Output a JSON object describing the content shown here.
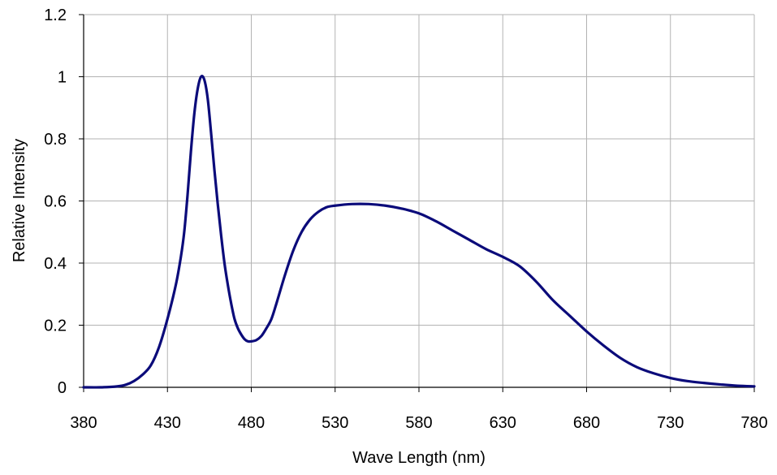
{
  "chart_data": {
    "type": "line",
    "title": "",
    "xlabel": "Wave Length (nm)",
    "ylabel": "Relative Intensity",
    "xlim": [
      380,
      780
    ],
    "ylim": [
      0,
      1.2
    ],
    "xticks": [
      380,
      430,
      480,
      530,
      580,
      630,
      680,
      730,
      780
    ],
    "yticks": [
      0,
      0.2,
      0.4,
      0.6,
      0.8,
      1,
      1.2
    ],
    "ytick_labels": [
      "0",
      "0.2",
      "0.4",
      "0.6",
      "0.8",
      "1",
      "1.2"
    ],
    "grid": true,
    "legend": "none",
    "colors": {
      "line": "#0b0b7a",
      "grid": "#b3b3b3",
      "axis": "#000000"
    },
    "series": [
      {
        "x": [
          380,
          390,
          400,
          405,
          410,
          415,
          420,
          425,
          430,
          435,
          438,
          440,
          442,
          444,
          446,
          448,
          450,
          452,
          454,
          456,
          458,
          460,
          462,
          464,
          466,
          468,
          470,
          472,
          474,
          476,
          478,
          480,
          483,
          486,
          489,
          492,
          495,
          500,
          505,
          510,
          515,
          520,
          525,
          530,
          540,
          550,
          560,
          570,
          580,
          590,
          600,
          610,
          620,
          630,
          640,
          650,
          660,
          670,
          680,
          690,
          700,
          710,
          720,
          730,
          740,
          750,
          760,
          770,
          780
        ],
        "y": [
          0.0,
          0.0,
          0.003,
          0.008,
          0.02,
          0.04,
          0.07,
          0.13,
          0.22,
          0.33,
          0.42,
          0.5,
          0.62,
          0.76,
          0.88,
          0.96,
          1.0,
          0.99,
          0.93,
          0.82,
          0.7,
          0.59,
          0.49,
          0.4,
          0.33,
          0.27,
          0.22,
          0.19,
          0.17,
          0.155,
          0.148,
          0.148,
          0.152,
          0.165,
          0.19,
          0.22,
          0.27,
          0.36,
          0.44,
          0.5,
          0.54,
          0.565,
          0.58,
          0.585,
          0.59,
          0.59,
          0.585,
          0.575,
          0.56,
          0.535,
          0.505,
          0.475,
          0.445,
          0.42,
          0.39,
          0.34,
          0.28,
          0.23,
          0.18,
          0.135,
          0.095,
          0.065,
          0.045,
          0.03,
          0.02,
          0.014,
          0.009,
          0.005,
          0.003
        ]
      }
    ]
  }
}
